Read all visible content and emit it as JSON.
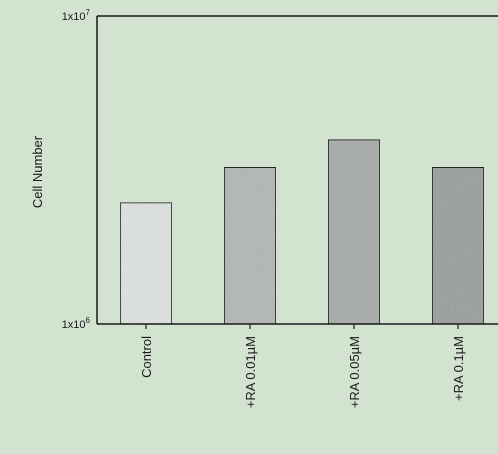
{
  "chart_data": {
    "type": "bar",
    "title": "",
    "xlabel": "",
    "ylabel": "Cell Number",
    "yscale": "log",
    "ylim": [
      1000000,
      10000000
    ],
    "ytick_labels": [
      {
        "value": 10000000,
        "mantissa": "1x10",
        "exponent": "7"
      },
      {
        "value": 1000000,
        "mantissa": "1x10",
        "exponent": "6"
      }
    ],
    "categories": [
      "Control",
      "+RA 0.01µM",
      "+RA 0.05µM",
      "+RA 0.1µM"
    ],
    "values": [
      2480000,
      3230000,
      3970000,
      3230000
    ],
    "bar_colors": [
      "#e9eeea",
      "#bfc4c0",
      "#b4b9b5",
      "#a8ada9"
    ],
    "grid": false
  }
}
